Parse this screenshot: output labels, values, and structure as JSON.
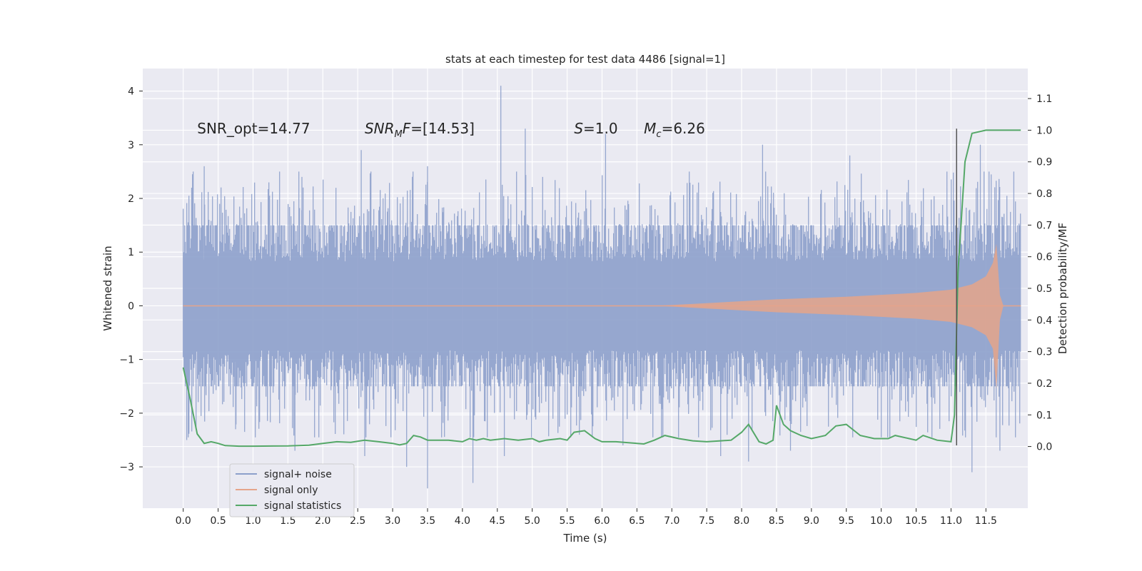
{
  "chart_data": {
    "type": "line",
    "title": "stats at each timestep for test data 4486 [signal=1]",
    "xlabel": "Time (s)",
    "ylabel_left": "Whitened strain",
    "ylabel_right": "Detection probability/MF",
    "xlim": [
      -0.58,
      12.1
    ],
    "ylim_left": [
      -3.77,
      4.42
    ],
    "ylim_right": [
      -0.195,
      1.195
    ],
    "x_ticks": [
      0.0,
      0.5,
      1.0,
      1.5,
      2.0,
      2.5,
      3.0,
      3.5,
      4.0,
      4.5,
      5.0,
      5.5,
      6.0,
      6.5,
      7.0,
      7.5,
      8.0,
      8.5,
      9.0,
      9.5,
      10.0,
      10.5,
      11.0,
      11.5
    ],
    "x_tick_labels": [
      "0.0",
      "0.5",
      "1.0",
      "1.5",
      "2.0",
      "2.5",
      "3.0",
      "3.5",
      "4.0",
      "4.5",
      "5.0",
      "5.5",
      "6.0",
      "6.5",
      "7.0",
      "7.5",
      "8.0",
      "8.5",
      "9.0",
      "9.5",
      "10.0",
      "10.5",
      "11.0",
      "11.5"
    ],
    "y_left_ticks": [
      -3,
      -2,
      -1,
      0,
      1,
      2,
      3,
      4
    ],
    "y_left_tick_labels": [
      "−3",
      "−2",
      "−1",
      "0",
      "1",
      "2",
      "3",
      "4"
    ],
    "y_right_ticks": [
      0.0,
      0.1,
      0.2,
      0.3,
      0.4,
      0.5,
      0.6,
      0.7,
      0.8,
      0.9,
      1.0,
      1.1
    ],
    "y_right_tick_labels": [
      "0.0",
      "0.1",
      "0.2",
      "0.3",
      "0.4",
      "0.5",
      "0.6",
      "0.7",
      "0.8",
      "0.9",
      "1.0",
      "1.1"
    ],
    "grid": true,
    "legend_position": "bottom-left",
    "annotations": [
      {
        "text": "SNR_opt=14.77",
        "x": 0.2,
        "y": 3.3
      },
      {
        "text": "SNR_MF=[14.53]",
        "x": 2.6,
        "y": 3.3
      },
      {
        "text": "S=1.0",
        "x": 5.6,
        "y": 3.3
      },
      {
        "text": "M_c=6.26",
        "x": 6.6,
        "y": 3.3
      }
    ],
    "vertical_marker": {
      "x": 11.08,
      "y_range": [
        -2.6,
        3.3
      ],
      "color": "#555555"
    },
    "series": [
      {
        "name": "signal+ noise",
        "axis": "left",
        "color": "#8da0cb",
        "kind": "noise-band",
        "x_range": [
          0.0,
          12.0
        ],
        "band_core": [
          -1.5,
          1.5
        ],
        "peaks": [
          [
            0.12,
            2.2
          ],
          [
            0.3,
            2.6
          ],
          [
            1.7,
            2.4
          ],
          [
            2.55,
            2.9
          ],
          [
            3.5,
            2.6
          ],
          [
            4.55,
            4.1
          ],
          [
            4.9,
            3.3
          ],
          [
            5.15,
            2.4
          ],
          [
            6.05,
            3.2
          ],
          [
            8.3,
            3.0
          ],
          [
            9.55,
            2.8
          ],
          [
            11.42,
            3.0
          ],
          [
            11.9,
            2.5
          ]
        ],
        "troughs": [
          [
            0.05,
            -2.5
          ],
          [
            0.75,
            -2.3
          ],
          [
            1.6,
            -2.7
          ],
          [
            2.6,
            -2.8
          ],
          [
            3.2,
            -3.0
          ],
          [
            3.5,
            -3.4
          ],
          [
            4.15,
            -3.3
          ],
          [
            4.6,
            -2.8
          ],
          [
            6.3,
            -2.6
          ],
          [
            7.7,
            -2.8
          ],
          [
            8.1,
            -2.9
          ],
          [
            8.7,
            -2.7
          ],
          [
            11.3,
            -3.1
          ],
          [
            11.7,
            -2.7
          ]
        ]
      },
      {
        "name": "signal only",
        "axis": "left",
        "color": "#e5a48a",
        "kind": "chirp",
        "x_range": [
          0.0,
          12.0
        ],
        "amplitude_envelope": [
          [
            0.0,
            0.0
          ],
          [
            6.8,
            0.0
          ],
          [
            7.5,
            0.05
          ],
          [
            8.5,
            0.12
          ],
          [
            9.5,
            0.17
          ],
          [
            10.5,
            0.24
          ],
          [
            11.0,
            0.3
          ],
          [
            11.3,
            0.4
          ],
          [
            11.5,
            0.55
          ],
          [
            11.6,
            0.8
          ],
          [
            11.65,
            1.15
          ],
          [
            11.7,
            0.2
          ],
          [
            11.75,
            0.0
          ],
          [
            12.0,
            0.0
          ]
        ]
      },
      {
        "name": "signal statistics",
        "axis": "right",
        "color": "#55a868",
        "kind": "line",
        "x": [
          0.0,
          0.1,
          0.2,
          0.3,
          0.4,
          0.5,
          0.6,
          0.8,
          1.0,
          1.5,
          1.8,
          2.0,
          2.2,
          2.4,
          2.6,
          2.8,
          3.0,
          3.1,
          3.2,
          3.3,
          3.4,
          3.5,
          3.6,
          3.8,
          4.0,
          4.1,
          4.2,
          4.3,
          4.4,
          4.6,
          4.8,
          5.0,
          5.1,
          5.2,
          5.4,
          5.5,
          5.6,
          5.75,
          5.9,
          6.0,
          6.2,
          6.5,
          6.6,
          6.75,
          6.9,
          7.1,
          7.3,
          7.5,
          7.7,
          7.85,
          8.0,
          8.1,
          8.25,
          8.35,
          8.45,
          8.5,
          8.6,
          8.7,
          8.85,
          9.0,
          9.2,
          9.35,
          9.5,
          9.7,
          9.9,
          10.1,
          10.2,
          10.4,
          10.5,
          10.6,
          10.8,
          11.0,
          11.05,
          11.1,
          11.2,
          11.3,
          11.5,
          11.7,
          11.8,
          12.0
        ],
        "y": [
          0.25,
          0.15,
          0.04,
          0.01,
          0.015,
          0.01,
          0.003,
          0.001,
          0.001,
          0.002,
          0.004,
          0.01,
          0.015,
          0.013,
          0.02,
          0.015,
          0.01,
          0.005,
          0.01,
          0.035,
          0.03,
          0.02,
          0.02,
          0.02,
          0.015,
          0.025,
          0.02,
          0.025,
          0.02,
          0.025,
          0.02,
          0.025,
          0.015,
          0.02,
          0.025,
          0.02,
          0.045,
          0.05,
          0.025,
          0.015,
          0.015,
          0.01,
          0.008,
          0.02,
          0.035,
          0.025,
          0.018,
          0.015,
          0.018,
          0.02,
          0.045,
          0.07,
          0.015,
          0.008,
          0.02,
          0.13,
          0.07,
          0.05,
          0.035,
          0.025,
          0.035,
          0.065,
          0.07,
          0.035,
          0.025,
          0.025,
          0.035,
          0.025,
          0.02,
          0.035,
          0.02,
          0.015,
          0.1,
          0.55,
          0.9,
          0.99,
          1.0,
          1.0,
          1.0,
          1.0
        ]
      }
    ]
  }
}
